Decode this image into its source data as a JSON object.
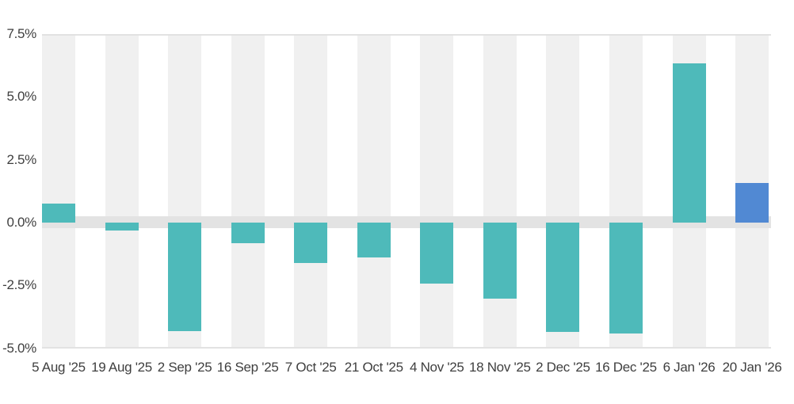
{
  "chart_data": {
    "type": "bar",
    "title": "",
    "xlabel": "",
    "ylabel": "",
    "categories": [
      "5 Aug '25",
      "19 Aug '25",
      "2 Sep '25",
      "16 Sep '25",
      "7 Oct '25",
      "21 Oct '25",
      "4 Nov '25",
      "18 Nov '25",
      "2 Dec '25",
      "16 Dec '25",
      "6 Jan '26",
      "20 Jan '26"
    ],
    "values": [
      0.75,
      -0.33,
      -4.33,
      -0.81,
      -1.6,
      -1.38,
      -2.42,
      -3.02,
      -4.35,
      -4.4,
      6.35,
      1.57
    ],
    "unit": "%",
    "y_tick_labels": [
      "7.5%",
      "5.0%",
      "2.5%",
      "0.0%",
      "-2.5%",
      "-5.0%"
    ],
    "y_tick_values": [
      7.5,
      5.0,
      2.5,
      0.0,
      -2.5,
      -5.0
    ],
    "ylim": [
      -5.0,
      7.5
    ],
    "legend": "none",
    "grid": "horizontal lines at 7.5% and -5.0%, thick band at 0.0%, vertical stripe behind each bar",
    "bar_colors": [
      "teal",
      "teal",
      "teal",
      "teal",
      "teal",
      "teal",
      "teal",
      "teal",
      "teal",
      "teal",
      "teal",
      "blue"
    ]
  },
  "colors": {
    "teal": "#4ebaba",
    "blue": "#5189d3",
    "stripe": "#f0f0f0",
    "zero_band": "#e3e3e3",
    "grid_line": "#e2e2e2",
    "tick_text": "#3f3f3f",
    "background": "#ffffff"
  }
}
